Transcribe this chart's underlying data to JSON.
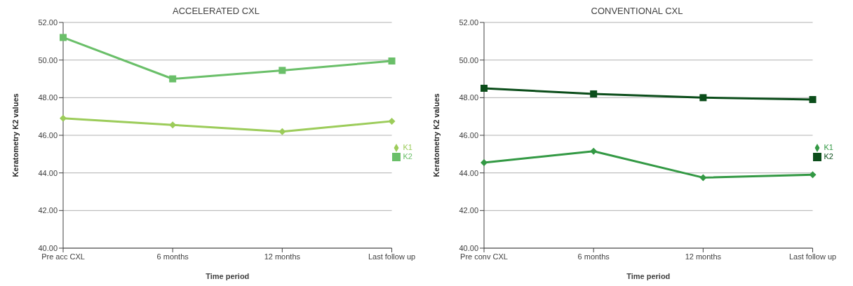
{
  "chart_data": [
    {
      "type": "line",
      "title": "ACCELERATED CXL",
      "xlabel": "Time period",
      "ylabel": "Keratometry  K2 values",
      "categories": [
        "Pre acc CXL",
        "6 months",
        "12 months",
        "Last follow up"
      ],
      "series": [
        {
          "name": "K1",
          "color": "#9ccc5a",
          "marker": "diamond",
          "values": [
            46.9,
            46.55,
            46.2,
            46.75
          ]
        },
        {
          "name": "K2",
          "color": "#6abf69",
          "marker": "square",
          "values": [
            51.2,
            49.0,
            49.45,
            49.95
          ]
        }
      ],
      "ylim": [
        40,
        52
      ],
      "yticks": [
        {
          "value": 40,
          "label": "40.00"
        },
        {
          "value": 42,
          "label": "42.00"
        },
        {
          "value": 44,
          "label": "44.00"
        },
        {
          "value": 46,
          "label": "46.00"
        },
        {
          "value": 48,
          "label": "48.00"
        },
        {
          "value": 50,
          "label": "50.00"
        },
        {
          "value": 52,
          "label": "52.00"
        }
      ],
      "grid": "y",
      "legend": "right"
    },
    {
      "type": "line",
      "title": "CONVENTIONAL CXL",
      "xlabel": "Time period",
      "ylabel": "Keratometry  K2 values",
      "categories": [
        "Pre conv CXL",
        "6 months",
        "12 months",
        "Last follow up"
      ],
      "series": [
        {
          "name": "K1",
          "color": "#339944",
          "marker": "diamond",
          "values": [
            44.55,
            45.15,
            43.75,
            43.9
          ]
        },
        {
          "name": "K2",
          "color": "#0b4d1a",
          "marker": "square",
          "values": [
            48.5,
            48.2,
            48.0,
            47.9
          ]
        }
      ],
      "ylim": [
        40,
        52
      ],
      "yticks": [
        {
          "value": 40,
          "label": "40.00"
        },
        {
          "value": 42,
          "label": "42.00"
        },
        {
          "value": 44,
          "label": "44.00"
        },
        {
          "value": 46,
          "label": "46.00"
        },
        {
          "value": 48,
          "label": "48.00"
        },
        {
          "value": 50,
          "label": "50.00"
        },
        {
          "value": 52,
          "label": "52.00"
        }
      ],
      "grid": "y",
      "legend": "right"
    }
  ]
}
